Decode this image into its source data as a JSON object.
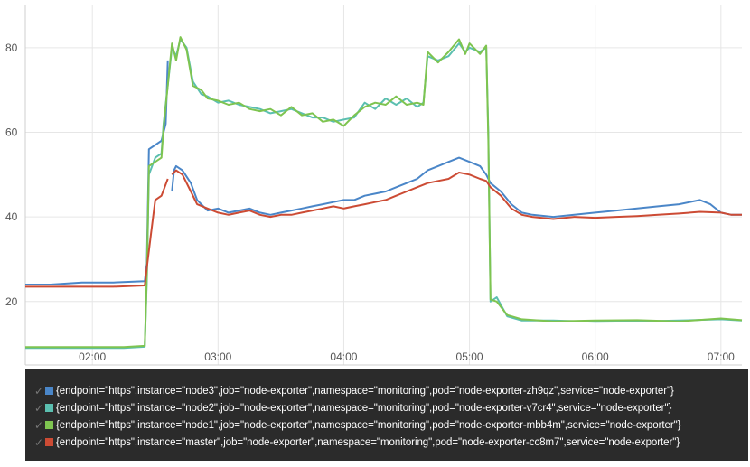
{
  "chart_data": {
    "type": "line",
    "xlim": [
      "01:28",
      "07:10"
    ],
    "ylim": [
      5,
      90
    ],
    "y_ticks": [
      20,
      40,
      60,
      80
    ],
    "x_ticks": [
      "02:00",
      "03:00",
      "04:00",
      "05:00",
      "06:00",
      "07:00"
    ],
    "grid": true,
    "legend_position": "bottom",
    "series": [
      {
        "name": "{endpoint=\"https\",instance=\"node3\",job=\"node-exporter\",namespace=\"monitoring\",pod=\"node-exporter-zh9qz\",service=\"node-exporter\"}",
        "color": "#4a86c8",
        "points": [
          [
            "01:28",
            24.0
          ],
          [
            "01:40",
            24.0
          ],
          [
            "01:55",
            24.5
          ],
          [
            "02:10",
            24.5
          ],
          [
            "02:25",
            24.8
          ],
          [
            "02:26",
            29.0
          ],
          [
            "02:27",
            56.0
          ],
          [
            "02:30",
            57.0
          ],
          [
            "02:33",
            58.0
          ],
          [
            "02:35",
            62.0
          ],
          [
            "02:36",
            77.0
          ],
          [
            "null",
            null
          ],
          [
            "02:38",
            46.0
          ],
          [
            "02:39",
            51.0
          ],
          [
            "02:40",
            52.0
          ],
          [
            "02:43",
            51.0
          ],
          [
            "02:47",
            48.0
          ],
          [
            "02:50",
            44.0
          ],
          [
            "02:55",
            41.5
          ],
          [
            "03:00",
            42.0
          ],
          [
            "03:05",
            41.0
          ],
          [
            "03:10",
            41.5
          ],
          [
            "03:15",
            42.0
          ],
          [
            "03:20",
            41.0
          ],
          [
            "03:25",
            40.5
          ],
          [
            "03:30",
            41.0
          ],
          [
            "03:35",
            41.5
          ],
          [
            "03:40",
            42.0
          ],
          [
            "03:45",
            42.5
          ],
          [
            "03:50",
            43.0
          ],
          [
            "03:55",
            43.5
          ],
          [
            "04:00",
            44.0
          ],
          [
            "04:05",
            44.0
          ],
          [
            "04:10",
            45.0
          ],
          [
            "04:15",
            45.5
          ],
          [
            "04:20",
            46.0
          ],
          [
            "04:25",
            47.0
          ],
          [
            "04:30",
            48.0
          ],
          [
            "04:35",
            49.0
          ],
          [
            "04:40",
            51.0
          ],
          [
            "04:45",
            52.0
          ],
          [
            "04:50",
            53.0
          ],
          [
            "04:55",
            54.0
          ],
          [
            "05:00",
            53.0
          ],
          [
            "05:05",
            52.0
          ],
          [
            "05:08",
            50.0
          ],
          [
            "05:10",
            48.0
          ],
          [
            "05:15",
            46.0
          ],
          [
            "05:20",
            43.0
          ],
          [
            "05:25",
            41.0
          ],
          [
            "05:30",
            40.5
          ],
          [
            "05:40",
            40.0
          ],
          [
            "05:50",
            40.5
          ],
          [
            "06:00",
            41.0
          ],
          [
            "06:10",
            41.5
          ],
          [
            "06:20",
            42.0
          ],
          [
            "06:30",
            42.5
          ],
          [
            "06:40",
            43.0
          ],
          [
            "06:50",
            44.0
          ],
          [
            "06:55",
            43.0
          ],
          [
            "07:00",
            41.0
          ],
          [
            "07:05",
            40.5
          ],
          [
            "07:10",
            40.5
          ]
        ]
      },
      {
        "name": "{endpoint=\"https\",instance=\"node2\",job=\"node-exporter\",namespace=\"monitoring\",pod=\"node-exporter-v7cr4\",service=\"node-exporter\"}",
        "color": "#5bbfb0",
        "points": [
          [
            "01:28",
            9.0
          ],
          [
            "01:45",
            9.0
          ],
          [
            "02:00",
            9.0
          ],
          [
            "02:15",
            9.0
          ],
          [
            "02:25",
            9.3
          ],
          [
            "02:26",
            25.0
          ],
          [
            "02:27",
            50.0
          ],
          [
            "02:30",
            54.0
          ],
          [
            "02:33",
            55.0
          ],
          [
            "02:34",
            62.0
          ],
          [
            "02:38",
            80.0
          ],
          [
            "02:40",
            78.0
          ],
          [
            "02:42",
            82.0
          ],
          [
            "02:45",
            80.0
          ],
          [
            "02:48",
            72.0
          ],
          [
            "02:52",
            69.0
          ],
          [
            "02:55",
            68.5
          ],
          [
            "03:00",
            67.0
          ],
          [
            "03:05",
            67.5
          ],
          [
            "03:10",
            66.5
          ],
          [
            "03:15",
            66.0
          ],
          [
            "03:20",
            65.5
          ],
          [
            "03:25",
            64.5
          ],
          [
            "03:30",
            65.0
          ],
          [
            "03:35",
            65.5
          ],
          [
            "03:40",
            64.5
          ],
          [
            "03:45",
            63.5
          ],
          [
            "03:50",
            63.5
          ],
          [
            "03:55",
            62.5
          ],
          [
            "04:00",
            63.0
          ],
          [
            "04:05",
            63.5
          ],
          [
            "04:10",
            67.0
          ],
          [
            "04:15",
            65.5
          ],
          [
            "04:20",
            68.0
          ],
          [
            "04:25",
            66.5
          ],
          [
            "04:30",
            68.0
          ],
          [
            "04:35",
            66.0
          ],
          [
            "04:38",
            67.0
          ],
          [
            "04:40",
            78.0
          ],
          [
            "04:45",
            77.0
          ],
          [
            "04:50",
            78.0
          ],
          [
            "04:55",
            81.0
          ],
          [
            "04:58",
            79.0
          ],
          [
            "05:00",
            80.0
          ],
          [
            "05:05",
            79.0
          ],
          [
            "05:08",
            80.0
          ],
          [
            "05:09",
            60.0
          ],
          [
            "05:10",
            20.0
          ],
          [
            "05:13",
            21.0
          ],
          [
            "05:18",
            16.5
          ],
          [
            "05:25",
            15.5
          ],
          [
            "05:40",
            15.5
          ],
          [
            "06:00",
            15.2
          ],
          [
            "06:20",
            15.3
          ],
          [
            "06:40",
            15.5
          ],
          [
            "07:00",
            15.8
          ],
          [
            "07:10",
            15.5
          ]
        ]
      },
      {
        "name": "{endpoint=\"https\",instance=\"node1\",job=\"node-exporter\",namespace=\"monitoring\",pod=\"node-exporter-mbb4m\",service=\"node-exporter\"}",
        "color": "#7ec450",
        "points": [
          [
            "01:28",
            9.2
          ],
          [
            "01:45",
            9.2
          ],
          [
            "02:00",
            9.2
          ],
          [
            "02:15",
            9.2
          ],
          [
            "02:25",
            9.5
          ],
          [
            "02:26",
            26.0
          ],
          [
            "02:27",
            52.0
          ],
          [
            "02:30",
            53.0
          ],
          [
            "02:33",
            54.0
          ],
          [
            "02:34",
            61.0
          ],
          [
            "02:38",
            81.0
          ],
          [
            "02:40",
            77.0
          ],
          [
            "02:42",
            82.5
          ],
          [
            "02:45",
            79.5
          ],
          [
            "02:48",
            71.0
          ],
          [
            "02:52",
            70.0
          ],
          [
            "02:55",
            68.0
          ],
          [
            "03:00",
            67.5
          ],
          [
            "03:05",
            66.5
          ],
          [
            "03:10",
            67.0
          ],
          [
            "03:15",
            65.5
          ],
          [
            "03:20",
            65.0
          ],
          [
            "03:25",
            65.5
          ],
          [
            "03:30",
            64.0
          ],
          [
            "03:35",
            66.0
          ],
          [
            "03:40",
            64.0
          ],
          [
            "03:45",
            64.5
          ],
          [
            "03:50",
            62.5
          ],
          [
            "03:55",
            63.0
          ],
          [
            "04:00",
            61.5
          ],
          [
            "04:05",
            64.0
          ],
          [
            "04:10",
            66.0
          ],
          [
            "04:15",
            67.0
          ],
          [
            "04:20",
            66.5
          ],
          [
            "04:25",
            68.5
          ],
          [
            "04:30",
            66.5
          ],
          [
            "04:35",
            67.0
          ],
          [
            "04:38",
            66.5
          ],
          [
            "04:40",
            79.0
          ],
          [
            "04:45",
            76.5
          ],
          [
            "04:50",
            79.0
          ],
          [
            "04:55",
            82.0
          ],
          [
            "04:58",
            78.5
          ],
          [
            "05:00",
            81.0
          ],
          [
            "05:05",
            78.5
          ],
          [
            "05:08",
            80.5
          ],
          [
            "05:09",
            58.0
          ],
          [
            "05:10",
            20.5
          ],
          [
            "05:13",
            20.0
          ],
          [
            "05:18",
            16.8
          ],
          [
            "05:25",
            15.8
          ],
          [
            "05:40",
            15.3
          ],
          [
            "06:00",
            15.5
          ],
          [
            "06:20",
            15.6
          ],
          [
            "06:40",
            15.3
          ],
          [
            "07:00",
            16.0
          ],
          [
            "07:10",
            15.6
          ]
        ]
      },
      {
        "name": "{endpoint=\"https\",instance=\"master\",job=\"node-exporter\",namespace=\"monitoring\",pod=\"node-exporter-cc8m7\",service=\"node-exporter\"}",
        "color": "#cc4b34",
        "points": [
          [
            "01:28",
            23.5
          ],
          [
            "01:40",
            23.5
          ],
          [
            "01:55",
            23.5
          ],
          [
            "02:10",
            23.5
          ],
          [
            "02:25",
            23.8
          ],
          [
            "02:26",
            28.0
          ],
          [
            "02:28",
            36.0
          ],
          [
            "02:30",
            44.0
          ],
          [
            "02:33",
            45.0
          ],
          [
            "02:36",
            49.0
          ],
          [
            "null",
            null
          ],
          [
            "02:38",
            50.0
          ],
          [
            "02:40",
            51.0
          ],
          [
            "02:43",
            50.0
          ],
          [
            "02:47",
            46.0
          ],
          [
            "02:50",
            43.0
          ],
          [
            "02:55",
            42.0
          ],
          [
            "03:00",
            41.0
          ],
          [
            "03:05",
            40.5
          ],
          [
            "03:10",
            41.0
          ],
          [
            "03:15",
            41.5
          ],
          [
            "03:20",
            40.5
          ],
          [
            "03:25",
            40.0
          ],
          [
            "03:30",
            40.5
          ],
          [
            "03:35",
            40.5
          ],
          [
            "03:40",
            41.0
          ],
          [
            "03:45",
            41.5
          ],
          [
            "03:50",
            42.0
          ],
          [
            "03:55",
            42.5
          ],
          [
            "04:00",
            42.0
          ],
          [
            "04:05",
            42.5
          ],
          [
            "04:10",
            43.0
          ],
          [
            "04:15",
            43.5
          ],
          [
            "04:20",
            44.0
          ],
          [
            "04:25",
            45.0
          ],
          [
            "04:30",
            46.0
          ],
          [
            "04:35",
            47.0
          ],
          [
            "04:40",
            48.0
          ],
          [
            "04:45",
            48.5
          ],
          [
            "04:50",
            49.0
          ],
          [
            "04:55",
            50.5
          ],
          [
            "05:00",
            50.0
          ],
          [
            "05:05",
            49.0
          ],
          [
            "05:08",
            48.5
          ],
          [
            "05:10",
            47.0
          ],
          [
            "05:15",
            45.0
          ],
          [
            "05:20",
            42.0
          ],
          [
            "05:25",
            40.5
          ],
          [
            "05:30",
            40.0
          ],
          [
            "05:40",
            39.5
          ],
          [
            "05:50",
            40.0
          ],
          [
            "06:00",
            39.8
          ],
          [
            "06:10",
            40.0
          ],
          [
            "06:20",
            40.2
          ],
          [
            "06:30",
            40.5
          ],
          [
            "06:40",
            40.8
          ],
          [
            "06:50",
            41.2
          ],
          [
            "07:00",
            41.0
          ],
          [
            "07:05",
            40.5
          ],
          [
            "07:10",
            40.5
          ]
        ]
      }
    ]
  }
}
